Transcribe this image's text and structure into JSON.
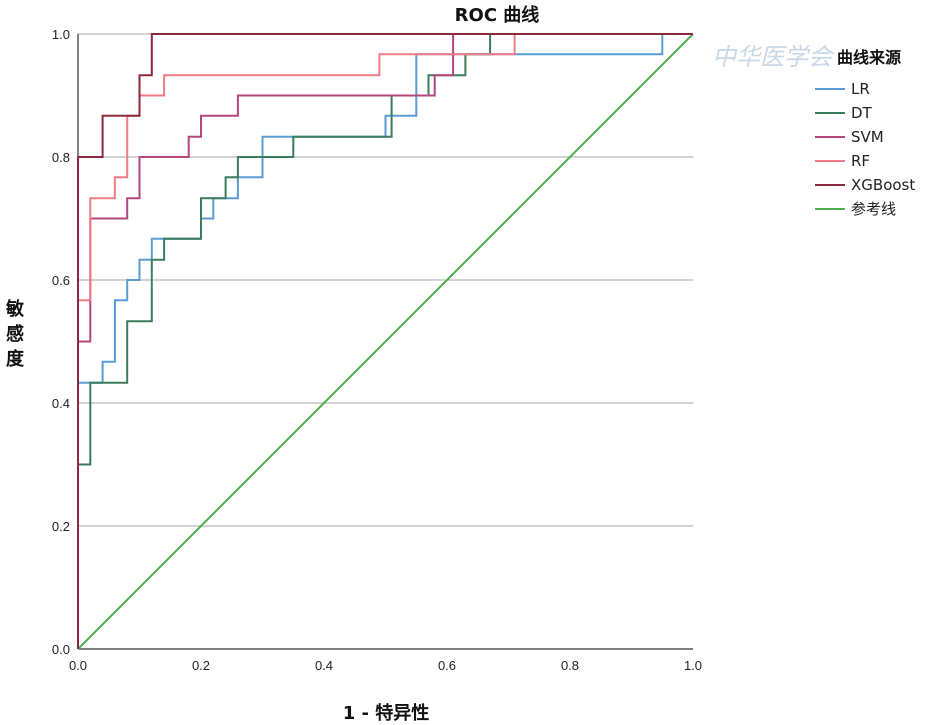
{
  "chart_data": {
    "type": "line",
    "title": "ROC 曲线",
    "xlabel": "1 - 特异性",
    "ylabel": "敏感度",
    "xlim": [
      0,
      1
    ],
    "ylim": [
      0,
      1
    ],
    "xticks": [
      "0.0",
      "0.2",
      "0.4",
      "0.6",
      "0.8",
      "1.0"
    ],
    "yticks": [
      "0.0",
      "0.2",
      "0.4",
      "0.6",
      "0.8",
      "1.0"
    ],
    "grid": "horizontal",
    "legend": {
      "title": "曲线来源",
      "position": "right"
    },
    "watermark": "中华医学会",
    "series": [
      {
        "name": "LR",
        "color": "#5b9bd5",
        "x": [
          0,
          0,
          0.04,
          0.04,
          0.06,
          0.06,
          0.08,
          0.08,
          0.1,
          0.1,
          0.12,
          0.12,
          0.2,
          0.2,
          0.22,
          0.22,
          0.26,
          0.26,
          0.3,
          0.3,
          0.5,
          0.5,
          0.55,
          0.55,
          0.65,
          0.65,
          0.7,
          0.7,
          0.95,
          0.95,
          1.0
        ],
        "y": [
          0,
          0.433,
          0.433,
          0.467,
          0.467,
          0.567,
          0.567,
          0.6,
          0.6,
          0.633,
          0.633,
          0.667,
          0.667,
          0.7,
          0.7,
          0.733,
          0.733,
          0.767,
          0.767,
          0.833,
          0.833,
          0.867,
          0.867,
          0.967,
          0.967,
          0.967,
          0.967,
          0.967,
          0.967,
          1.0,
          1.0
        ]
      },
      {
        "name": "DT",
        "color": "#3a7d5c",
        "x": [
          0,
          0,
          0.02,
          0.02,
          0.08,
          0.08,
          0.12,
          0.12,
          0.14,
          0.14,
          0.2,
          0.2,
          0.24,
          0.24,
          0.26,
          0.26,
          0.35,
          0.35,
          0.51,
          0.51,
          0.57,
          0.57,
          0.63,
          0.63,
          0.67,
          0.67,
          1.0
        ],
        "y": [
          0,
          0.3,
          0.3,
          0.433,
          0.433,
          0.533,
          0.533,
          0.633,
          0.633,
          0.667,
          0.667,
          0.733,
          0.733,
          0.767,
          0.767,
          0.8,
          0.8,
          0.833,
          0.833,
          0.9,
          0.9,
          0.933,
          0.933,
          0.967,
          0.967,
          1.0,
          1.0
        ]
      },
      {
        "name": "SVM",
        "color": "#b5477a",
        "x": [
          0,
          0,
          0.02,
          0.02,
          0.08,
          0.08,
          0.1,
          0.1,
          0.18,
          0.18,
          0.2,
          0.2,
          0.26,
          0.26,
          0.32,
          0.32,
          0.5,
          0.5,
          0.58,
          0.58,
          0.61,
          0.61,
          1.0
        ],
        "y": [
          0,
          0.5,
          0.5,
          0.7,
          0.7,
          0.733,
          0.733,
          0.8,
          0.8,
          0.833,
          0.833,
          0.867,
          0.867,
          0.9,
          0.9,
          0.9,
          0.9,
          0.9,
          0.9,
          0.933,
          0.933,
          1.0,
          1.0
        ]
      },
      {
        "name": "RF",
        "color": "#f07a86",
        "x": [
          0,
          0,
          0.02,
          0.02,
          0.06,
          0.06,
          0.08,
          0.08,
          0.1,
          0.1,
          0.14,
          0.14,
          0.49,
          0.49,
          0.55,
          0.55,
          0.71,
          0.71,
          1.0
        ],
        "y": [
          0,
          0.567,
          0.567,
          0.733,
          0.733,
          0.767,
          0.767,
          0.867,
          0.867,
          0.9,
          0.9,
          0.933,
          0.933,
          0.967,
          0.967,
          0.967,
          0.967,
          1.0,
          1.0
        ]
      },
      {
        "name": "XGBoost",
        "color": "#8b2a3f",
        "x": [
          0,
          0,
          0.04,
          0.04,
          0.1,
          0.1,
          0.12,
          0.12,
          1.0
        ],
        "y": [
          0,
          0.8,
          0.8,
          0.867,
          0.867,
          0.933,
          0.933,
          1.0,
          1.0
        ]
      },
      {
        "name": "参考线",
        "color": "#4caf50",
        "x": [
          0,
          1
        ],
        "y": [
          0,
          1
        ]
      }
    ]
  }
}
